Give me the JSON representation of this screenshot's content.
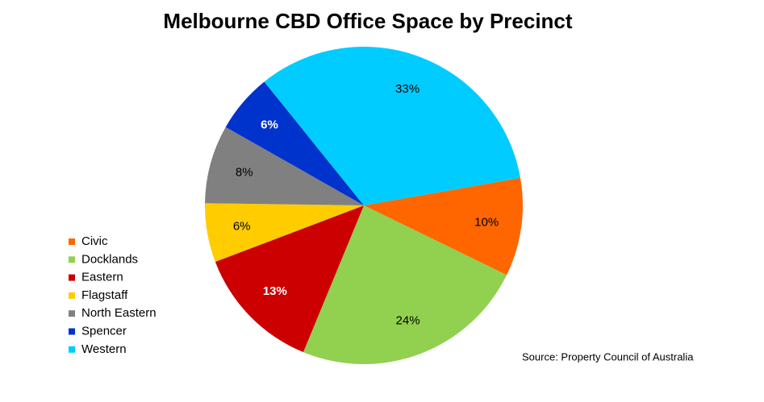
{
  "chart_data": {
    "type": "pie",
    "title": "Melbourne CBD Office Space by Precinct",
    "categories": [
      "Civic",
      "Docklands",
      "Eastern",
      "Flagstaff",
      "North Eastern",
      "Spencer",
      "Western"
    ],
    "values": [
      10,
      24,
      13,
      6,
      8,
      6,
      33
    ],
    "value_labels": [
      "10%",
      "24%",
      "13%",
      "6%",
      "8%",
      "6%",
      "33%"
    ],
    "colors": [
      "#ff6600",
      "#92d050",
      "#cc0000",
      "#ffcc00",
      "#808080",
      "#0033cc",
      "#00ccff"
    ],
    "legend": "left",
    "source": "Source: Property Council of Australia"
  }
}
